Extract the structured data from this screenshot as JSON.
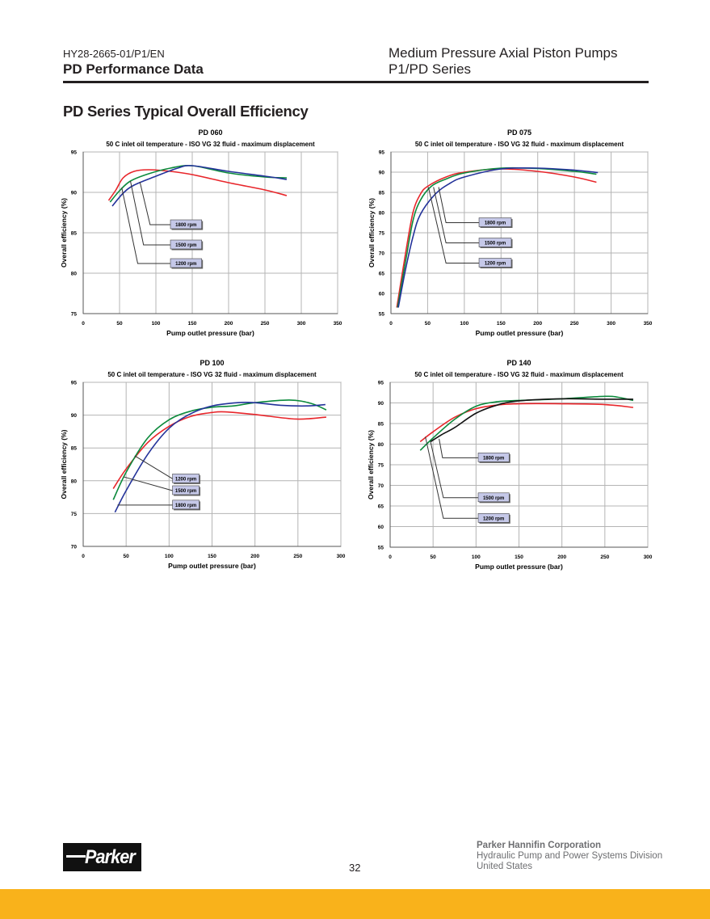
{
  "header": {
    "doc_code": "HY28-2665-01/P1/EN",
    "section": "PD Performance Data",
    "title": "Medium Pressure Axial Piston Pumps",
    "series": "P1/PD Series"
  },
  "section_title": "PD Series Typical Overall Efficiency",
  "footer": {
    "logo_text": "Parker",
    "page_number": "32",
    "company": "Parker Hannifin Corporation",
    "division": "Hydraulic Pump and Power Systems Division",
    "country": "United States",
    "bar_color": "#f9b21b"
  },
  "chart_data": [
    {
      "type": "line",
      "title": "PD 060",
      "subtitle": "50 C inlet oil temperature - ISO VG 32 fluid - maximum displacement",
      "xlabel": "Pump outlet pressure (bar)",
      "ylabel": "Overall efficiency  (%)",
      "xlim": [
        0,
        350
      ],
      "ylim": [
        75,
        95
      ],
      "xticks": [
        0,
        50,
        100,
        150,
        200,
        250,
        300,
        350
      ],
      "yticks": [
        75,
        80,
        85,
        90,
        95
      ],
      "grid": true,
      "series": [
        {
          "name": "1200 rpm",
          "color": "#e8262b",
          "x": [
            35,
            45,
            55,
            70,
            90,
            120,
            150,
            200,
            250,
            280
          ],
          "y": [
            89,
            90.3,
            91.8,
            92.6,
            92.8,
            92.6,
            92.2,
            91.2,
            90.3,
            89.6
          ]
        },
        {
          "name": "1500 rpm",
          "color": "#0c8a3c",
          "x": [
            37,
            50,
            65,
            90,
            120,
            150,
            200,
            250,
            280
          ],
          "y": [
            88.8,
            90.2,
            91.4,
            92.3,
            93,
            93.3,
            92.4,
            91.9,
            91.8
          ]
        },
        {
          "name": "1800 rpm",
          "color": "#23329a",
          "x": [
            40,
            55,
            70,
            100,
            130,
            150,
            200,
            250,
            280
          ],
          "y": [
            88.3,
            89.9,
            90.9,
            92,
            93,
            93.3,
            92.6,
            92,
            91.6
          ]
        }
      ]
    },
    {
      "type": "line",
      "title": "PD 075",
      "subtitle": "50 C inlet oil temperature - ISO VG 32 fluid - maximum displacement",
      "xlabel": "Pump outlet pressure (bar)",
      "ylabel": "Overall efficiency  (%)",
      "xlim": [
        0,
        350
      ],
      "ylim": [
        55,
        95
      ],
      "xticks": [
        0,
        50,
        100,
        150,
        200,
        250,
        300,
        350
      ],
      "yticks": [
        55,
        60,
        65,
        70,
        75,
        80,
        85,
        90,
        95
      ],
      "grid": true,
      "series": [
        {
          "name": "1200 rpm",
          "color": "#e8262b",
          "x": [
            8,
            20,
            30,
            40,
            50,
            75,
            100,
            150,
            200,
            250,
            280
          ],
          "y": [
            56.5,
            70,
            80,
            84.5,
            86.5,
            88.8,
            90,
            90.8,
            90.2,
            88.8,
            87.5
          ]
        },
        {
          "name": "1500 rpm",
          "color": "#0c8a3c",
          "x": [
            9,
            20,
            30,
            40,
            55,
            75,
            100,
            150,
            200,
            250,
            280
          ],
          "y": [
            56.5,
            68,
            78,
            83,
            86.5,
            88.3,
            89.8,
            91,
            90.9,
            90.2,
            89.5
          ]
        },
        {
          "name": "1800 rpm",
          "color": "#23329a",
          "x": [
            10,
            20,
            30,
            40,
            60,
            80,
            100,
            150,
            200,
            250,
            282
          ],
          "y": [
            56.5,
            66,
            74,
            79.5,
            84.5,
            87.2,
            88.8,
            90.8,
            91,
            90.5,
            89.9
          ]
        }
      ]
    },
    {
      "type": "line",
      "title": "PD 100",
      "subtitle": "50 C inlet oil temperature - ISO VG 32 fluid - maximum displacement",
      "xlabel": "Pump outlet pressure (bar)",
      "ylabel": "Overall efficiency (%)",
      "xlim": [
        0,
        300
      ],
      "ylim": [
        70,
        95
      ],
      "xticks": [
        0,
        50,
        100,
        150,
        200,
        250,
        300
      ],
      "yticks": [
        70,
        75,
        80,
        85,
        90,
        95
      ],
      "grid": true,
      "series": [
        {
          "name": "1200 rpm",
          "color": "#e8262b",
          "x": [
            35,
            50,
            75,
            100,
            125,
            150,
            165,
            200,
            248,
            283
          ],
          "y": [
            78.8,
            81.8,
            85.8,
            88.3,
            89.8,
            90.4,
            90.5,
            90.1,
            89.4,
            89.7
          ]
        },
        {
          "name": "1500 rpm",
          "color": "#0c8a3c",
          "x": [
            35,
            50,
            75,
            100,
            125,
            150,
            175,
            200,
            240,
            265,
            283
          ],
          "y": [
            77.1,
            81.3,
            86.5,
            89.3,
            90.6,
            91.2,
            91.4,
            91.9,
            92.3,
            91.8,
            90.8
          ]
        },
        {
          "name": "1800 rpm",
          "color": "#23329a",
          "x": [
            37,
            50,
            75,
            100,
            125,
            150,
            180,
            200,
            230,
            260,
            282
          ],
          "y": [
            75.2,
            78.5,
            84,
            88,
            90.2,
            91.4,
            91.9,
            91.9,
            91.5,
            91.4,
            91.6
          ]
        }
      ]
    },
    {
      "type": "line",
      "title": "PD 140",
      "subtitle": "50 C inlet oil temperature - ISO VG 32 fluid - maximum displacement",
      "xlabel": "Pump outlet pressure (bar)",
      "ylabel": "Overall efficiency (%)",
      "xlim": [
        0,
        300
      ],
      "ylim": [
        55,
        95
      ],
      "xticks": [
        0,
        50,
        100,
        150,
        200,
        250,
        300
      ],
      "yticks": [
        55,
        60,
        65,
        70,
        75,
        80,
        85,
        90,
        95
      ],
      "grid": true,
      "series": [
        {
          "name": "1200 rpm",
          "color": "#e8262b",
          "x": [
            35,
            50,
            75,
            100,
            125,
            150,
            200,
            250,
            283
          ],
          "y": [
            80.6,
            83,
            86.5,
            88.6,
            89.5,
            89.8,
            89.8,
            89.6,
            88.9
          ]
        },
        {
          "name": "1500 rpm",
          "color": "#0c8a3c",
          "x": [
            35,
            50,
            75,
            100,
            125,
            150,
            200,
            250,
            265,
            283
          ],
          "y": [
            78.5,
            81.5,
            86,
            89.2,
            90.3,
            90.6,
            91,
            91.6,
            91.4,
            90.6
          ]
        },
        {
          "name": "1800 rpm",
          "color": "#111111",
          "x": [
            47,
            60,
            75,
            100,
            125,
            150,
            200,
            250,
            283
          ],
          "y": [
            80.6,
            82.3,
            84,
            87.5,
            89.5,
            90.5,
            91,
            90.9,
            90.9
          ]
        }
      ]
    }
  ]
}
